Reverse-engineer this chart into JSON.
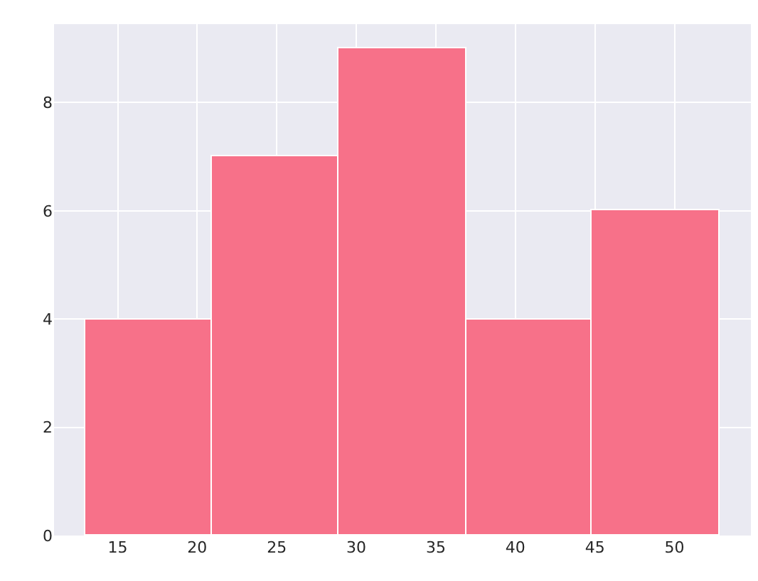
{
  "chart_data": {
    "type": "histogram",
    "bins": [
      13.0,
      20.9,
      28.9,
      36.9,
      44.8,
      52.8
    ],
    "values": [
      4,
      7,
      9,
      4,
      6
    ],
    "color": "#f77189",
    "xlim": [
      11.0,
      54.8
    ],
    "xticks": [
      15,
      20,
      25,
      30,
      35,
      40,
      45,
      50
    ],
    "ylim": [
      0,
      9.45
    ],
    "yticks": [
      0,
      2,
      4,
      6,
      8
    ],
    "grid": true
  }
}
